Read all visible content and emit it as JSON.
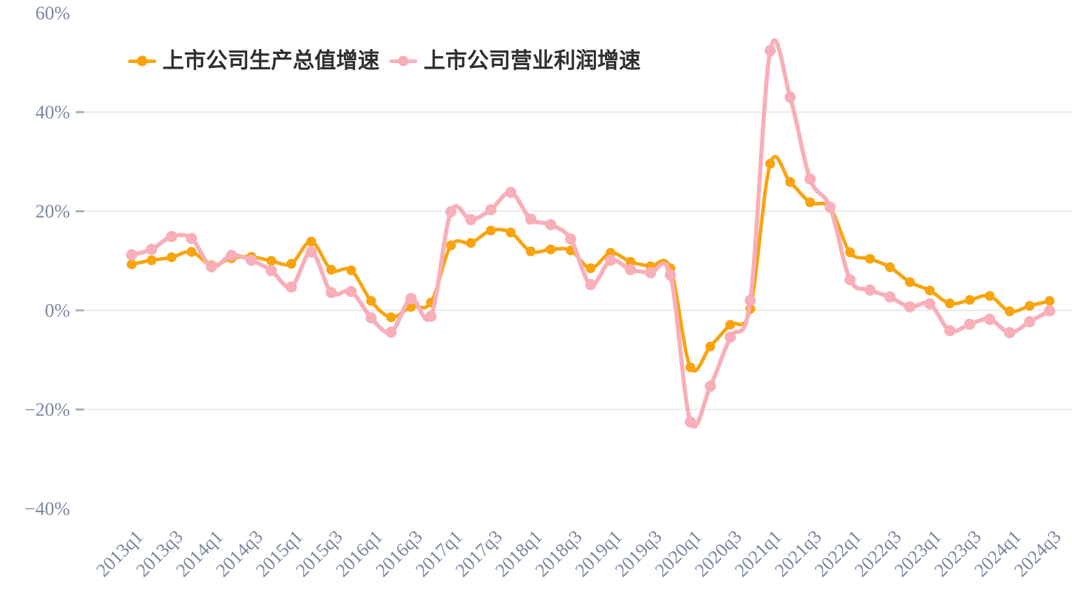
{
  "page": {
    "background": "#ffffff"
  },
  "legend": {
    "items": [
      {
        "label": "上市公司生产总值增速"
      },
      {
        "label": "上市公司营业利润增速"
      }
    ]
  },
  "chart_data": {
    "type": "line",
    "smooth": true,
    "grid": "horizontal-only",
    "legend_position": "top-left",
    "x": [
      "2013q1",
      "2013q2",
      "2013q3",
      "2013q4",
      "2014q1",
      "2014q2",
      "2014q3",
      "2014q4",
      "2015q1",
      "2015q2",
      "2015q3",
      "2015q4",
      "2016q1",
      "2016q2",
      "2016q3",
      "2016q4",
      "2017q1",
      "2017q2",
      "2017q3",
      "2017q4",
      "2018q1",
      "2018q2",
      "2018q3",
      "2018q4",
      "2019q1",
      "2019q2",
      "2019q3",
      "2019q4",
      "2020q1",
      "2020q2",
      "2020q3",
      "2020q4",
      "2021q1",
      "2021q2",
      "2021q3",
      "2021q4",
      "2022q1",
      "2022q2",
      "2022q3",
      "2022q4",
      "2023q1",
      "2023q2",
      "2023q3",
      "2023q4",
      "2024q1",
      "2024q2",
      "2024q3"
    ],
    "x_shown_tick_labels": [
      "2013q1",
      "2013q3",
      "2014q1",
      "2014q3",
      "2015q1",
      "2015q3",
      "2016q1",
      "2016q3",
      "2017q1",
      "2017q3",
      "2018q1",
      "2018q3",
      "2019q1",
      "2019q3",
      "2020q1",
      "2020q3",
      "2021q1",
      "2021q3",
      "2022q1",
      "2022q3",
      "2023q1",
      "2023q3",
      "2024q1",
      "2024q3"
    ],
    "x_label_every": 2,
    "ylim": [
      -45,
      62
    ],
    "yticks": [
      60,
      40,
      20,
      0,
      -20,
      -40
    ],
    "ytick_labels": [
      "60%",
      "40%",
      "20%",
      "0%",
      "−20%",
      "−40%"
    ],
    "gridlines_at": [
      40,
      20,
      0,
      -20
    ],
    "unit": "percent",
    "axis_text_color": "#7B87A0",
    "grid_color": "#E8EBF1",
    "tick_color": "#A8B0C2",
    "series": [
      {
        "name": "上市公司生产总值增速",
        "color": "#F8A40E",
        "marker": "circle",
        "values": [
          9.3,
          10.1,
          10.7,
          11.8,
          9.1,
          10.5,
          10.8,
          10.0,
          9.4,
          13.9,
          8.2,
          8.1,
          1.9,
          -1.4,
          0.7,
          1.6,
          13.1,
          13.6,
          16.1,
          15.7,
          11.9,
          12.3,
          12.1,
          8.5,
          11.6,
          9.8,
          8.9,
          8.5,
          -11.5,
          -7.3,
          -2.9,
          0.3,
          29.6,
          25.9,
          21.8,
          20.7,
          11.7,
          10.4,
          8.7,
          5.7,
          4.0,
          1.4,
          2.1,
          2.9,
          -0.2,
          0.9,
          1.9
        ]
      },
      {
        "name": "上市公司营业利润增速",
        "color": "#F8AFB9",
        "marker": "circle",
        "values": [
          11.2,
          12.3,
          14.9,
          14.5,
          8.8,
          11.1,
          10.1,
          8.0,
          4.7,
          11.8,
          3.6,
          3.8,
          -1.5,
          -4.4,
          2.4,
          -1.2,
          19.9,
          18.3,
          20.3,
          23.8,
          18.4,
          17.3,
          14.4,
          5.2,
          10.1,
          8.2,
          7.6,
          7.1,
          -22.5,
          -15.3,
          -5.4,
          2.0,
          52.4,
          43.0,
          26.5,
          20.8,
          6.2,
          4.1,
          2.7,
          0.7,
          1.3,
          -4.1,
          -2.8,
          -1.8,
          -4.5,
          -2.3,
          -0.1
        ]
      }
    ]
  }
}
